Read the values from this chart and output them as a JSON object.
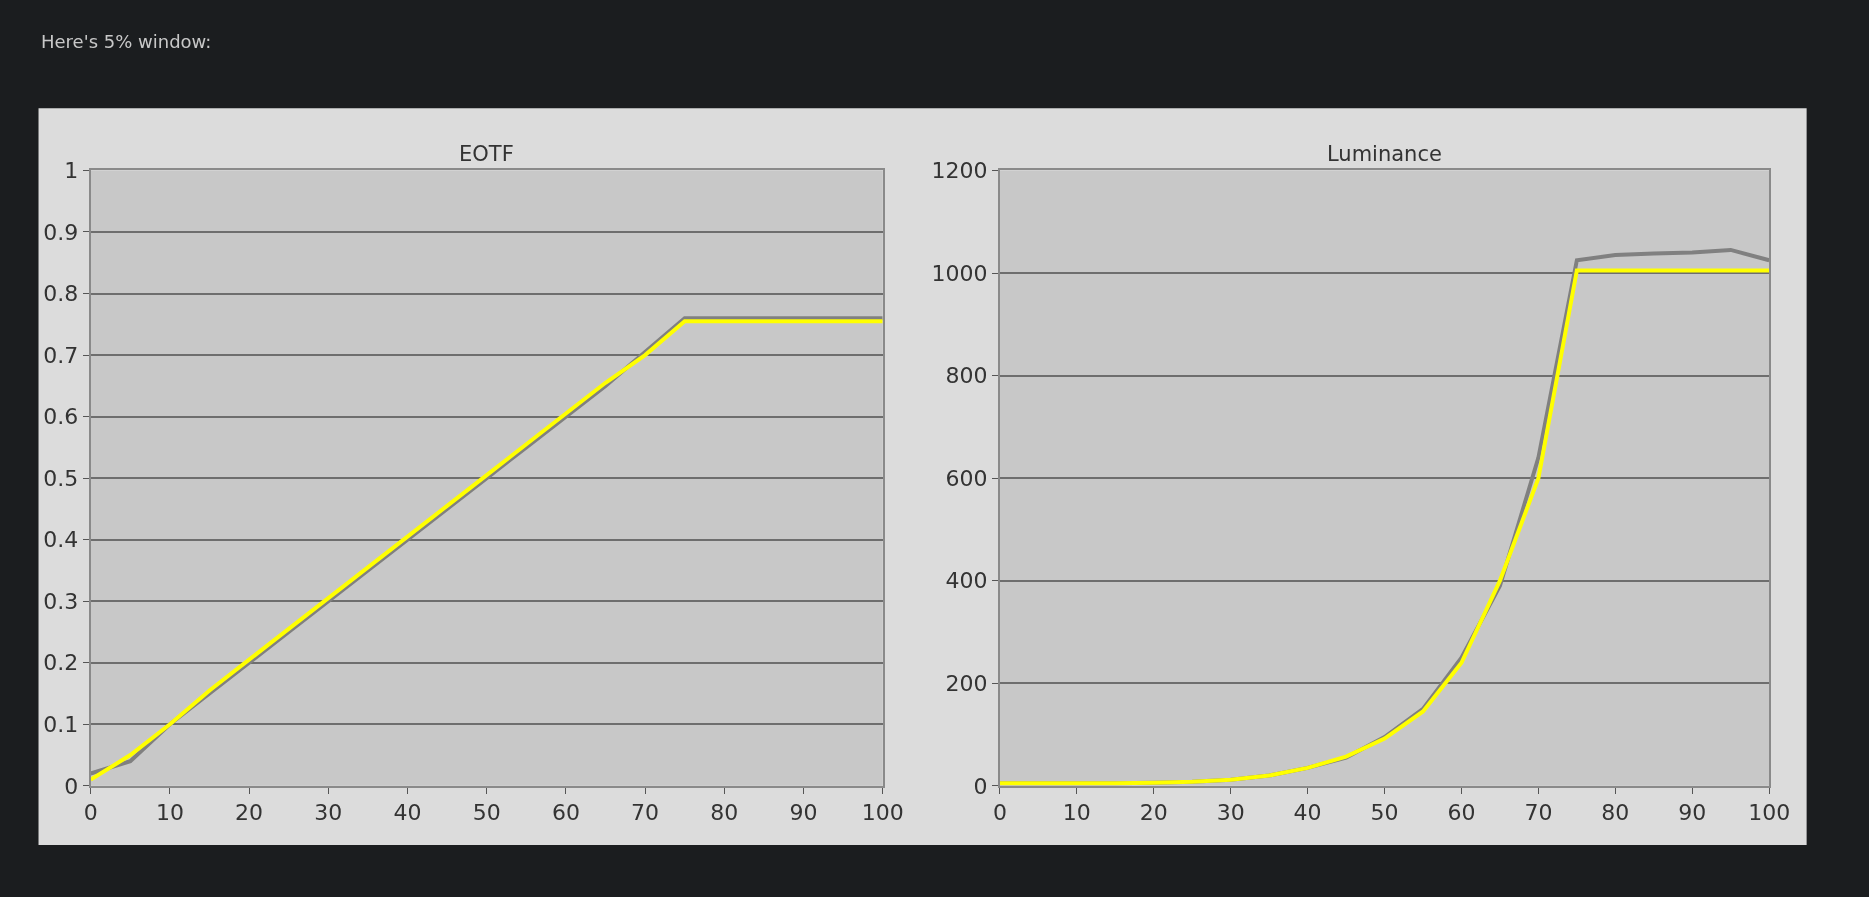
{
  "chart_data": [
    {
      "type": "line",
      "title": "EOTF",
      "annotations": [
        "Here's 5% window:"
      ],
      "x": [
        0,
        5,
        10,
        15,
        20,
        25,
        30,
        35,
        40,
        45,
        50,
        55,
        60,
        65,
        70,
        75,
        80,
        85,
        90,
        95,
        100
      ],
      "series": [
        {
          "color": "#808080",
          "values": [
            0.02,
            0.04,
            0.1,
            0.15,
            0.2,
            0.25,
            0.3,
            0.35,
            0.4,
            0.45,
            0.5,
            0.55,
            0.6,
            0.65,
            0.705,
            0.76,
            0.76,
            0.76,
            0.76,
            0.76,
            0.76
          ]
        },
        {
          "color": "#ffff00",
          "values": [
            0.01,
            0.05,
            0.1,
            0.155,
            0.205,
            0.255,
            0.305,
            0.355,
            0.405,
            0.455,
            0.505,
            0.555,
            0.605,
            0.655,
            0.7,
            0.755,
            0.755,
            0.755,
            0.755,
            0.755,
            0.755
          ]
        }
      ],
      "xlim": [
        0,
        100
      ],
      "xticks": [
        0,
        10,
        20,
        30,
        40,
        50,
        60,
        70,
        80,
        90,
        100
      ],
      "ylim": [
        0,
        1
      ],
      "yticks": [
        0,
        0.1,
        0.2,
        0.3,
        0.4,
        0.5,
        0.6,
        0.7,
        0.8,
        0.9,
        1
      ],
      "grid": "y",
      "line_style": "solid",
      "marker": "none"
    },
    {
      "type": "line",
      "title": "Luminance",
      "x": [
        0,
        5,
        10,
        15,
        20,
        25,
        30,
        35,
        40,
        45,
        50,
        55,
        60,
        65,
        70,
        75,
        80,
        85,
        90,
        95,
        100
      ],
      "series": [
        {
          "color": "#808080",
          "values": [
            5,
            5,
            5,
            5,
            6,
            8,
            12,
            20,
            35,
            55,
            95,
            150,
            250,
            390,
            640,
            1025,
            1035,
            1038,
            1040,
            1045,
            1025
          ]
        },
        {
          "color": "#ffff00",
          "values": [
            5,
            5,
            5,
            5,
            6,
            8,
            12,
            20,
            35,
            57,
            92,
            145,
            240,
            400,
            600,
            1005,
            1005,
            1005,
            1005,
            1005,
            1005
          ]
        }
      ],
      "xlim": [
        0,
        100
      ],
      "xticks": [
        0,
        10,
        20,
        30,
        40,
        50,
        60,
        70,
        80,
        90,
        100
      ],
      "ylim": [
        0,
        1200
      ],
      "yticks": [
        0,
        200,
        400,
        600,
        800,
        1000,
        1200
      ],
      "grid": "y",
      "line_style": "solid",
      "marker": "none"
    }
  ]
}
